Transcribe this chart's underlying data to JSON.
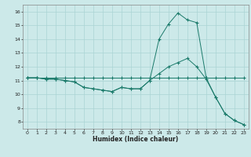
{
  "xlabel": "Humidex (Indice chaleur)",
  "xlim": [
    -0.5,
    23.5
  ],
  "ylim": [
    7.5,
    16.5
  ],
  "yticks": [
    8,
    9,
    10,
    11,
    12,
    13,
    14,
    15,
    16
  ],
  "xticks": [
    0,
    1,
    2,
    3,
    4,
    5,
    6,
    7,
    8,
    9,
    10,
    11,
    12,
    13,
    14,
    15,
    16,
    17,
    18,
    19,
    20,
    21,
    22,
    23
  ],
  "bg_color": "#cce9e9",
  "line_color": "#1a7a6a",
  "grid_color": "#aad4d4",
  "line1_x": [
    0,
    1,
    2,
    3,
    4,
    5,
    6,
    7,
    8,
    9,
    10,
    11,
    12,
    13,
    14,
    15,
    16,
    17,
    18,
    19,
    20,
    21,
    22,
    23
  ],
  "line1_y": [
    11.2,
    11.2,
    11.1,
    11.1,
    11.0,
    10.9,
    10.5,
    10.4,
    10.3,
    10.2,
    10.5,
    10.4,
    10.4,
    11.0,
    11.5,
    12.0,
    12.3,
    12.6,
    12.0,
    11.1,
    9.8,
    8.6,
    8.1,
    7.8
  ],
  "line2_x": [
    0,
    1,
    2,
    3,
    4,
    5,
    6,
    7,
    8,
    9,
    10,
    11,
    12,
    13,
    14,
    15,
    16,
    17,
    18,
    19,
    20,
    21,
    22,
    23
  ],
  "line2_y": [
    11.2,
    11.2,
    11.1,
    11.1,
    11.0,
    10.9,
    10.5,
    10.4,
    10.3,
    10.2,
    10.5,
    10.4,
    10.4,
    11.0,
    14.0,
    15.1,
    15.9,
    15.4,
    15.2,
    11.2,
    9.8,
    8.6,
    8.1,
    7.8
  ],
  "line3_x": [
    0,
    1,
    2,
    3,
    4,
    5,
    6,
    7,
    8,
    9,
    10,
    11,
    12,
    13,
    14,
    15,
    16,
    17,
    18,
    19,
    20,
    21,
    22,
    23
  ],
  "line3_y": [
    11.2,
    11.2,
    11.2,
    11.2,
    11.2,
    11.2,
    11.2,
    11.2,
    11.2,
    11.2,
    11.2,
    11.2,
    11.2,
    11.2,
    11.2,
    11.2,
    11.2,
    11.2,
    11.2,
    11.2,
    11.2,
    11.2,
    11.2,
    11.2
  ]
}
